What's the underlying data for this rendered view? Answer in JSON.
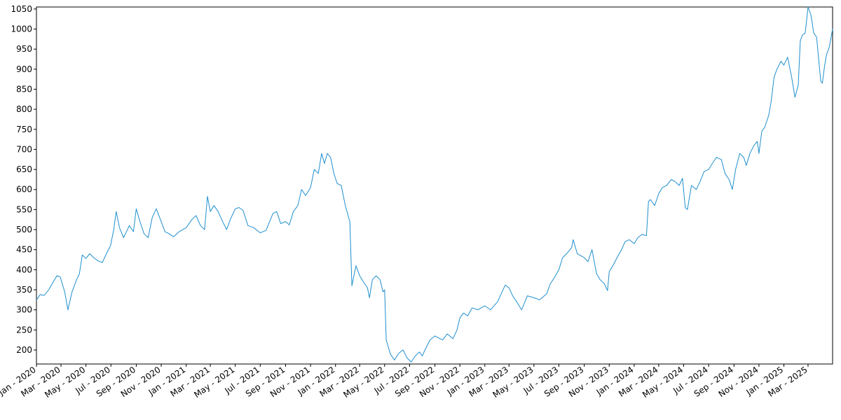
{
  "chart_data": {
    "type": "line",
    "title": "",
    "xlabel": "",
    "ylabel": "",
    "xlim": [
      "2020-01-01",
      "2025-04-30"
    ],
    "ylim": [
      165,
      1055
    ],
    "y_ticks": [
      200,
      250,
      300,
      350,
      400,
      450,
      500,
      550,
      600,
      650,
      700,
      750,
      800,
      850,
      900,
      950,
      1000,
      1050
    ],
    "x_ticks": [
      {
        "date": "2020-01-01",
        "label": "Jan - 2020"
      },
      {
        "date": "2020-03-01",
        "label": "Mar - 2020"
      },
      {
        "date": "2020-05-01",
        "label": "May - 2020"
      },
      {
        "date": "2020-07-01",
        "label": "Jul - 2020"
      },
      {
        "date": "2020-09-01",
        "label": "Sep - 2020"
      },
      {
        "date": "2020-11-01",
        "label": "Nov - 2020"
      },
      {
        "date": "2021-01-01",
        "label": "Jan - 2021"
      },
      {
        "date": "2021-03-01",
        "label": "Mar - 2021"
      },
      {
        "date": "2021-05-01",
        "label": "May - 2021"
      },
      {
        "date": "2021-07-01",
        "label": "Jul - 2021"
      },
      {
        "date": "2021-09-01",
        "label": "Sep - 2021"
      },
      {
        "date": "2021-11-01",
        "label": "Nov - 2021"
      },
      {
        "date": "2022-01-01",
        "label": "Jan - 2022"
      },
      {
        "date": "2022-03-01",
        "label": "Mar - 2022"
      },
      {
        "date": "2022-05-01",
        "label": "May - 2022"
      },
      {
        "date": "2022-07-01",
        "label": "Jul - 2022"
      },
      {
        "date": "2022-09-01",
        "label": "Sep - 2022"
      },
      {
        "date": "2022-11-01",
        "label": "Nov - 2022"
      },
      {
        "date": "2023-01-01",
        "label": "Jan - 2023"
      },
      {
        "date": "2023-03-01",
        "label": "Mar - 2023"
      },
      {
        "date": "2023-05-01",
        "label": "May - 2023"
      },
      {
        "date": "2023-07-01",
        "label": "Jul - 2023"
      },
      {
        "date": "2023-09-01",
        "label": "Sep - 2023"
      },
      {
        "date": "2023-11-01",
        "label": "Nov - 2023"
      },
      {
        "date": "2024-01-01",
        "label": "Jan - 2024"
      },
      {
        "date": "2024-03-01",
        "label": "Mar - 2024"
      },
      {
        "date": "2024-05-01",
        "label": "May - 2024"
      },
      {
        "date": "2024-07-01",
        "label": "Jul - 2024"
      },
      {
        "date": "2024-09-01",
        "label": "Sep - 2024"
      },
      {
        "date": "2024-11-01",
        "label": "Nov - 2024"
      },
      {
        "date": "2025-01-01",
        "label": "Jan - 2025"
      },
      {
        "date": "2025-03-01",
        "label": "Mar - 2025"
      }
    ],
    "grid": false,
    "series": [
      {
        "color": "#1f8fcf",
        "points": [
          [
            "2020-01-01",
            325
          ],
          [
            "2020-01-10",
            338
          ],
          [
            "2020-01-20",
            336
          ],
          [
            "2020-01-31",
            350
          ],
          [
            "2020-02-10",
            368
          ],
          [
            "2020-02-20",
            385
          ],
          [
            "2020-02-28",
            382
          ],
          [
            "2020-03-10",
            345
          ],
          [
            "2020-03-18",
            300
          ],
          [
            "2020-03-28",
            345
          ],
          [
            "2020-04-08",
            375
          ],
          [
            "2020-04-15",
            390
          ],
          [
            "2020-04-22",
            437
          ],
          [
            "2020-05-01",
            428
          ],
          [
            "2020-05-10",
            440
          ],
          [
            "2020-05-20",
            430
          ],
          [
            "2020-05-31",
            422
          ],
          [
            "2020-06-10",
            418
          ],
          [
            "2020-06-20",
            440
          ],
          [
            "2020-06-30",
            460
          ],
          [
            "2020-07-08",
            500
          ],
          [
            "2020-07-14",
            545
          ],
          [
            "2020-07-22",
            505
          ],
          [
            "2020-08-01",
            480
          ],
          [
            "2020-08-15",
            510
          ],
          [
            "2020-08-25",
            495
          ],
          [
            "2020-09-01",
            552
          ],
          [
            "2020-09-10",
            520
          ],
          [
            "2020-09-20",
            490
          ],
          [
            "2020-09-30",
            480
          ],
          [
            "2020-10-10",
            530
          ],
          [
            "2020-10-20",
            552
          ],
          [
            "2020-11-01",
            520
          ],
          [
            "2020-11-10",
            495
          ],
          [
            "2020-11-20",
            490
          ],
          [
            "2020-12-01",
            482
          ],
          [
            "2020-12-15",
            495
          ],
          [
            "2021-01-01",
            505
          ],
          [
            "2021-01-15",
            525
          ],
          [
            "2021-01-25",
            535
          ],
          [
            "2021-02-05",
            510
          ],
          [
            "2021-02-15",
            500
          ],
          [
            "2021-02-22",
            583
          ],
          [
            "2021-03-01",
            545
          ],
          [
            "2021-03-10",
            560
          ],
          [
            "2021-03-20",
            545
          ],
          [
            "2021-04-01",
            518
          ],
          [
            "2021-04-10",
            500
          ],
          [
            "2021-04-20",
            528
          ],
          [
            "2021-05-01",
            552
          ],
          [
            "2021-05-10",
            555
          ],
          [
            "2021-05-20",
            548
          ],
          [
            "2021-06-01",
            510
          ],
          [
            "2021-06-15",
            505
          ],
          [
            "2021-07-01",
            492
          ],
          [
            "2021-07-15",
            498
          ],
          [
            "2021-08-01",
            540
          ],
          [
            "2021-08-10",
            545
          ],
          [
            "2021-08-20",
            515
          ],
          [
            "2021-09-01",
            520
          ],
          [
            "2021-09-10",
            512
          ],
          [
            "2021-09-20",
            545
          ],
          [
            "2021-10-01",
            560
          ],
          [
            "2021-10-10",
            600
          ],
          [
            "2021-10-20",
            585
          ],
          [
            "2021-11-01",
            605
          ],
          [
            "2021-11-10",
            650
          ],
          [
            "2021-11-20",
            640
          ],
          [
            "2021-11-28",
            690
          ],
          [
            "2021-12-05",
            665
          ],
          [
            "2021-12-12",
            690
          ],
          [
            "2021-12-20",
            680
          ],
          [
            "2021-12-28",
            640
          ],
          [
            "2022-01-05",
            615
          ],
          [
            "2022-01-15",
            610
          ],
          [
            "2022-01-25",
            560
          ],
          [
            "2022-02-05",
            520
          ],
          [
            "2022-02-10",
            360
          ],
          [
            "2022-02-20",
            410
          ],
          [
            "2022-03-01",
            385
          ],
          [
            "2022-03-10",
            370
          ],
          [
            "2022-03-20",
            355
          ],
          [
            "2022-03-25",
            330
          ],
          [
            "2022-04-01",
            375
          ],
          [
            "2022-04-10",
            385
          ],
          [
            "2022-04-20",
            375
          ],
          [
            "2022-04-27",
            345
          ],
          [
            "2022-05-01",
            350
          ],
          [
            "2022-05-05",
            225
          ],
          [
            "2022-05-15",
            190
          ],
          [
            "2022-05-25",
            175
          ],
          [
            "2022-06-05",
            192
          ],
          [
            "2022-06-15",
            200
          ],
          [
            "2022-06-25",
            180
          ],
          [
            "2022-07-05",
            170
          ],
          [
            "2022-07-15",
            185
          ],
          [
            "2022-07-25",
            195
          ],
          [
            "2022-08-01",
            185
          ],
          [
            "2022-08-10",
            205
          ],
          [
            "2022-08-20",
            225
          ],
          [
            "2022-09-01",
            235
          ],
          [
            "2022-09-10",
            230
          ],
          [
            "2022-09-20",
            225
          ],
          [
            "2022-10-01",
            240
          ],
          [
            "2022-10-15",
            228
          ],
          [
            "2022-10-25",
            250
          ],
          [
            "2022-11-01",
            280
          ],
          [
            "2022-11-10",
            292
          ],
          [
            "2022-11-20",
            285
          ],
          [
            "2022-12-01",
            305
          ],
          [
            "2022-12-15",
            300
          ],
          [
            "2023-01-01",
            310
          ],
          [
            "2023-01-15",
            300
          ],
          [
            "2023-02-01",
            320
          ],
          [
            "2023-02-10",
            340
          ],
          [
            "2023-02-20",
            362
          ],
          [
            "2023-03-01",
            355
          ],
          [
            "2023-03-10",
            335
          ],
          [
            "2023-03-20",
            320
          ],
          [
            "2023-04-01",
            300
          ],
          [
            "2023-04-15",
            335
          ],
          [
            "2023-05-01",
            330
          ],
          [
            "2023-05-15",
            325
          ],
          [
            "2023-06-01",
            340
          ],
          [
            "2023-06-10",
            365
          ],
          [
            "2023-06-20",
            380
          ],
          [
            "2023-07-01",
            400
          ],
          [
            "2023-07-10",
            430
          ],
          [
            "2023-07-20",
            440
          ],
          [
            "2023-08-01",
            455
          ],
          [
            "2023-08-05",
            475
          ],
          [
            "2023-08-15",
            440
          ],
          [
            "2023-09-01",
            430
          ],
          [
            "2023-09-10",
            420
          ],
          [
            "2023-09-20",
            450
          ],
          [
            "2023-10-01",
            390
          ],
          [
            "2023-10-10",
            375
          ],
          [
            "2023-10-20",
            365
          ],
          [
            "2023-10-28",
            348
          ],
          [
            "2023-11-01",
            395
          ],
          [
            "2023-11-10",
            410
          ],
          [
            "2023-11-20",
            430
          ],
          [
            "2023-12-01",
            450
          ],
          [
            "2023-12-10",
            470
          ],
          [
            "2023-12-20",
            475
          ],
          [
            "2024-01-01",
            465
          ],
          [
            "2024-01-10",
            480
          ],
          [
            "2024-01-20",
            488
          ],
          [
            "2024-01-31",
            485
          ],
          [
            "2024-02-05",
            570
          ],
          [
            "2024-02-10",
            575
          ],
          [
            "2024-02-20",
            560
          ],
          [
            "2024-03-01",
            590
          ],
          [
            "2024-03-10",
            605
          ],
          [
            "2024-03-20",
            610
          ],
          [
            "2024-04-01",
            625
          ],
          [
            "2024-04-10",
            620
          ],
          [
            "2024-04-20",
            610
          ],
          [
            "2024-04-28",
            628
          ],
          [
            "2024-05-05",
            555
          ],
          [
            "2024-05-10",
            550
          ],
          [
            "2024-05-20",
            610
          ],
          [
            "2024-06-01",
            600
          ],
          [
            "2024-06-10",
            620
          ],
          [
            "2024-06-20",
            645
          ],
          [
            "2024-07-01",
            650
          ],
          [
            "2024-07-10",
            665
          ],
          [
            "2024-07-20",
            680
          ],
          [
            "2024-08-01",
            675
          ],
          [
            "2024-08-10",
            640
          ],
          [
            "2024-08-20",
            625
          ],
          [
            "2024-08-28",
            600
          ],
          [
            "2024-09-05",
            650
          ],
          [
            "2024-09-15",
            690
          ],
          [
            "2024-09-25",
            680
          ],
          [
            "2024-10-01",
            660
          ],
          [
            "2024-10-10",
            690
          ],
          [
            "2024-10-20",
            710
          ],
          [
            "2024-10-28",
            720
          ],
          [
            "2024-11-01",
            690
          ],
          [
            "2024-11-08",
            745
          ],
          [
            "2024-11-15",
            755
          ],
          [
            "2024-11-25",
            785
          ],
          [
            "2024-12-01",
            820
          ],
          [
            "2024-12-08",
            880
          ],
          [
            "2024-12-15",
            900
          ],
          [
            "2024-12-25",
            920
          ],
          [
            "2025-01-01",
            910
          ],
          [
            "2025-01-10",
            930
          ],
          [
            "2025-01-20",
            880
          ],
          [
            "2025-01-28",
            830
          ],
          [
            "2025-02-05",
            860
          ],
          [
            "2025-02-10",
            970
          ],
          [
            "2025-02-15",
            985
          ],
          [
            "2025-02-22",
            990
          ],
          [
            "2025-03-01",
            1055
          ],
          [
            "2025-03-08",
            1035
          ],
          [
            "2025-03-15",
            990
          ],
          [
            "2025-03-22",
            980
          ],
          [
            "2025-04-01",
            870
          ],
          [
            "2025-04-05",
            865
          ],
          [
            "2025-04-10",
            905
          ],
          [
            "2025-04-15",
            935
          ],
          [
            "2025-04-22",
            955
          ],
          [
            "2025-04-30",
            1000
          ]
        ]
      }
    ]
  }
}
